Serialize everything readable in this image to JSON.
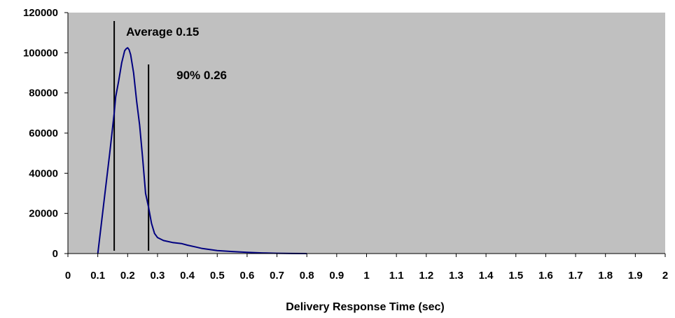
{
  "chart_data": {
    "type": "line",
    "title": "",
    "xlabel": "Delivery Response Time (sec)",
    "ylabel": "",
    "xlim": [
      0,
      2
    ],
    "ylim": [
      0,
      120000
    ],
    "x_ticks": [
      "0",
      "0.1",
      "0.2",
      "0.3",
      "0.4",
      "0.5",
      "0.6",
      "0.7",
      "0.8",
      "0.9",
      "1",
      "1.1",
      "1.2",
      "1.3",
      "1.4",
      "1.5",
      "1.6",
      "1.7",
      "1.8",
      "1.9",
      "2"
    ],
    "y_ticks": [
      "0",
      "20000",
      "40000",
      "60000",
      "80000",
      "100000",
      "120000"
    ],
    "grid": false,
    "legend": "none",
    "colors": {
      "plot_background": "#c0c0c0",
      "series_line": "#000080",
      "marker_line": "#000000"
    },
    "series": [
      {
        "x": [
          0.1,
          0.12,
          0.14,
          0.155,
          0.16,
          0.17,
          0.18,
          0.19,
          0.195,
          0.2,
          0.205,
          0.21,
          0.22,
          0.23,
          0.24,
          0.25,
          0.26,
          0.27,
          0.28,
          0.29,
          0.3,
          0.32,
          0.35,
          0.38,
          0.4,
          0.43,
          0.45,
          0.5,
          0.55,
          0.6,
          0.65,
          0.7,
          0.75,
          0.8
        ],
        "y": [
          0,
          25000,
          50000,
          70000,
          78000,
          86000,
          95000,
          101000,
          102000,
          102500,
          101500,
          99000,
          90000,
          76000,
          64000,
          48000,
          30000,
          23000,
          15000,
          10000,
          8000,
          6500,
          5500,
          5000,
          4200,
          3200,
          2500,
          1500,
          1000,
          600,
          300,
          150,
          50,
          0
        ]
      }
    ],
    "annotations": [
      {
        "text": "Average 0.15",
        "x": 0.155
      },
      {
        "text": "90% 0.26",
        "x": 0.27
      }
    ]
  }
}
